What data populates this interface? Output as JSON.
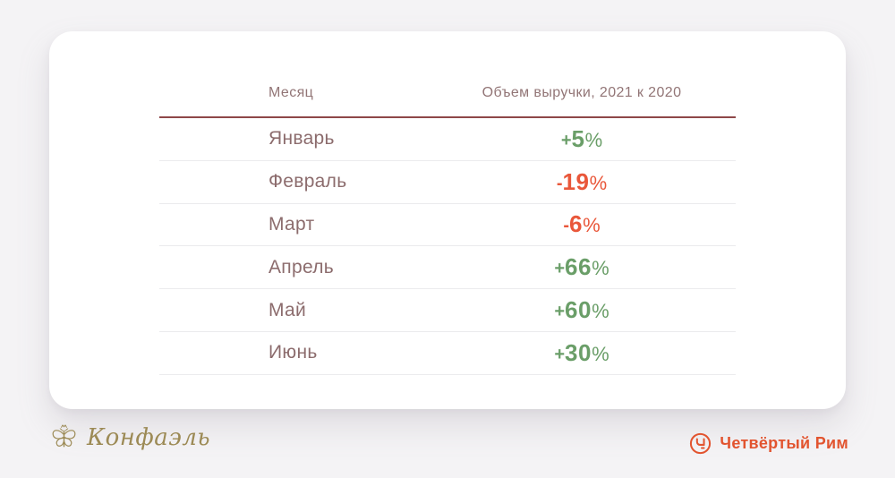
{
  "page": {
    "background": "#f4f3f5",
    "card_background": "#ffffff"
  },
  "colors": {
    "positive": "#6a9e68",
    "negative": "#e9573a",
    "month_text": "#8c6c6d",
    "header_text": "#927576",
    "header_rule": "#8e4748",
    "row_rule": "#ebebed",
    "brand_gold": "#9c8a55",
    "brand_orange": "#e2542f"
  },
  "table": {
    "headers": {
      "month": "Месяц",
      "value": "Объем выручки, 2021 к 2020"
    },
    "rows": [
      {
        "month": "Январь",
        "sign": "+",
        "value": "5",
        "unit": "%",
        "trend": "up"
      },
      {
        "month": "Февраль",
        "sign": "-",
        "value": "19",
        "unit": "%",
        "trend": "down"
      },
      {
        "month": "Март",
        "sign": "-",
        "value": "6",
        "unit": "%",
        "trend": "down"
      },
      {
        "month": "Апрель",
        "sign": "+",
        "value": "66",
        "unit": "%",
        "trend": "up"
      },
      {
        "month": "Май",
        "sign": "+",
        "value": "60",
        "unit": "%",
        "trend": "up"
      },
      {
        "month": "Июнь",
        "sign": "+",
        "value": "30",
        "unit": "%",
        "trend": "up"
      }
    ]
  },
  "chart_data": {
    "type": "table",
    "title": "Объем выручки, 2021 к 2020",
    "columns": [
      "Месяц",
      "Объем выручки, 2021 к 2020"
    ],
    "categories": [
      "Январь",
      "Февраль",
      "Март",
      "Апрель",
      "Май",
      "Июнь"
    ],
    "values": [
      5,
      -19,
      -6,
      66,
      60,
      30
    ],
    "unit": "%"
  },
  "footer": {
    "left_brand": {
      "label": "Конфаэль",
      "icon": "butterfly-icon"
    },
    "right_brand": {
      "label": "Четвёртый Рим",
      "icon": "phone-icon"
    }
  }
}
